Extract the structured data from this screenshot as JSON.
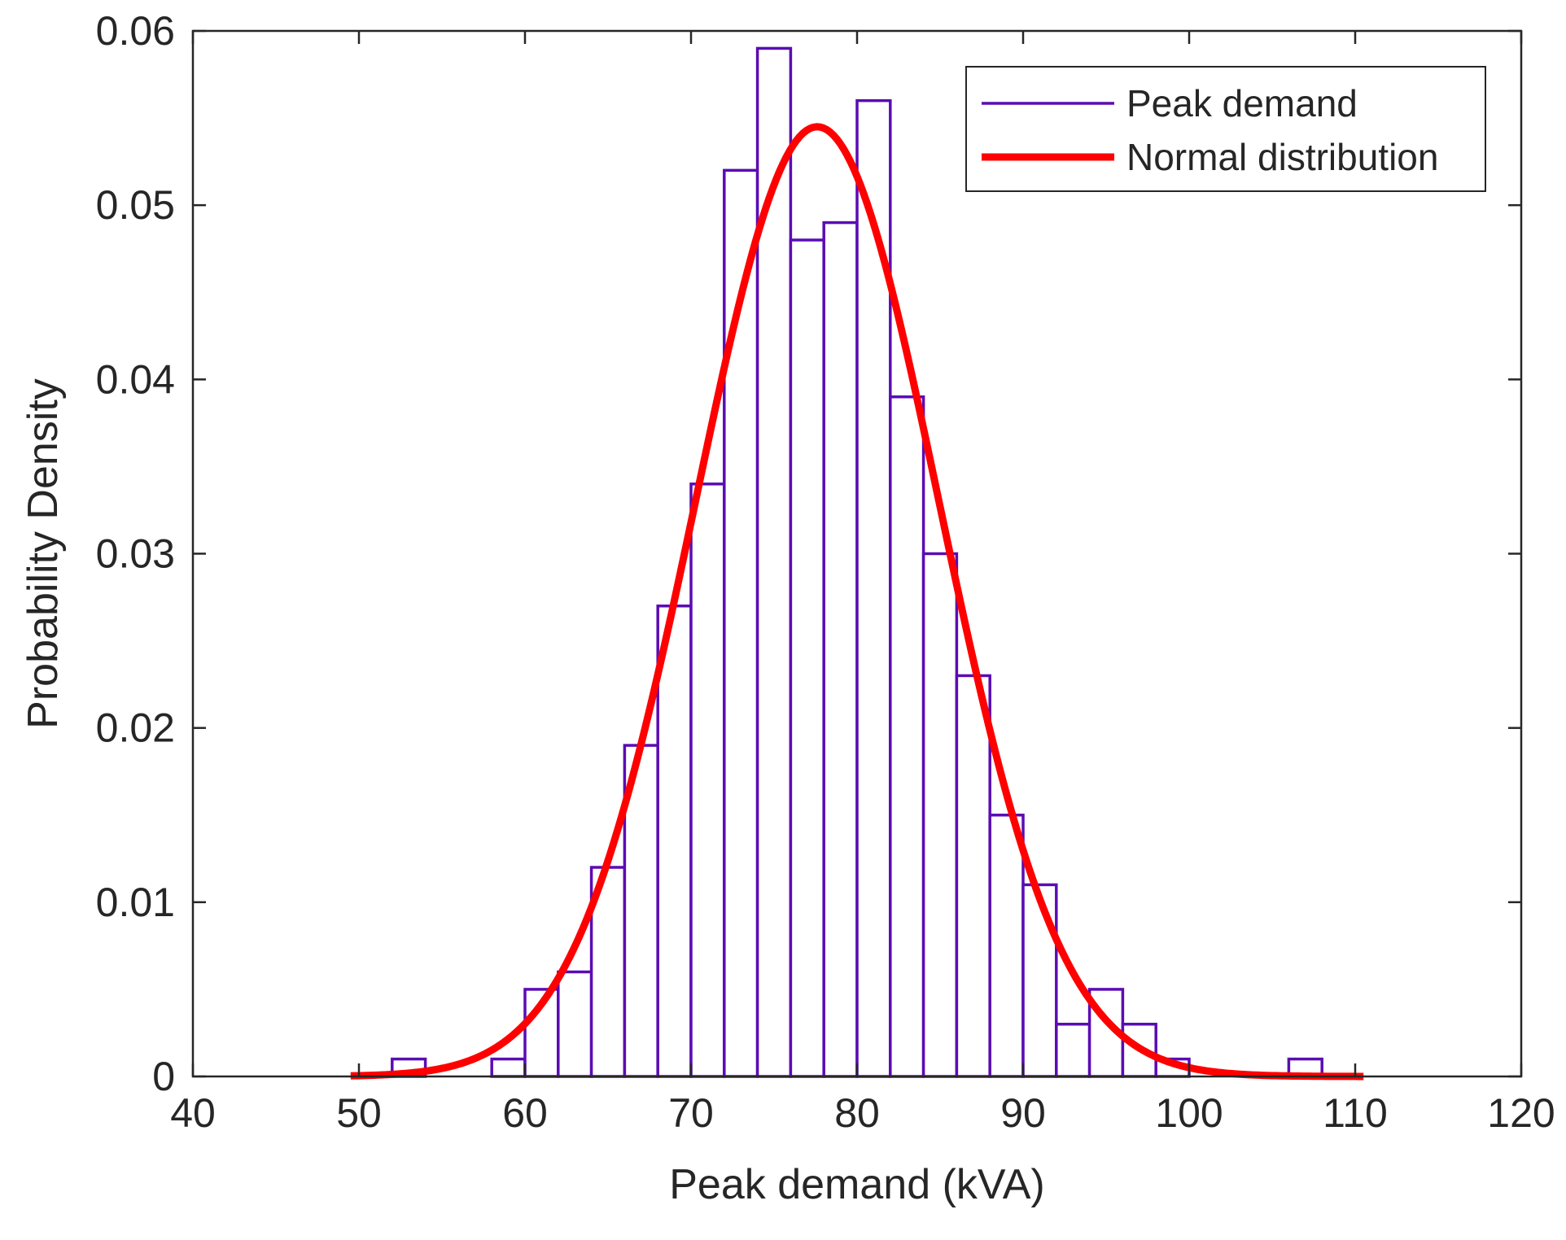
{
  "chart_data": {
    "type": "bar",
    "title": "",
    "xlabel": "Peak demand (kVA)",
    "ylabel": "Probability Density",
    "xlim": [
      40,
      120
    ],
    "ylim": [
      0,
      0.06
    ],
    "xticks": [
      40,
      50,
      60,
      70,
      80,
      90,
      100,
      110,
      120
    ],
    "yticks": [
      0,
      0.01,
      0.02,
      0.03,
      0.04,
      0.05,
      0.06
    ],
    "xtick_labels": [
      "40",
      "50",
      "60",
      "70",
      "80",
      "90",
      "100",
      "110",
      "120"
    ],
    "ytick_labels": [
      "0",
      "0.01",
      "0.02",
      "0.03",
      "0.04",
      "0.05",
      "0.06"
    ],
    "grid": false,
    "legend_position": "top-right",
    "series": [
      {
        "name": "Peak demand",
        "kind": "histogram",
        "color": "#5b0cb3",
        "bin_edges": [
          52,
          54,
          56,
          58,
          60,
          62,
          64,
          66,
          68,
          70,
          72,
          74,
          76,
          78,
          80,
          82,
          84,
          86,
          88,
          90,
          92,
          94,
          96,
          98,
          100,
          102,
          104,
          106,
          108
        ],
        "values": [
          0.001,
          0,
          0,
          0.001,
          0.005,
          0.006,
          0.012,
          0.019,
          0.027,
          0.034,
          0.052,
          0.059,
          0.048,
          0.049,
          0.056,
          0.039,
          0.03,
          0.023,
          0.015,
          0.011,
          0.003,
          0.005,
          0.003,
          0.001,
          0,
          0,
          0,
          0.001
        ]
      },
      {
        "name": "Normal distribution",
        "kind": "line",
        "color": "#ff0000",
        "mean": 77.6,
        "std": 7.32,
        "x_range": [
          49.5,
          110.5
        ]
      }
    ]
  }
}
